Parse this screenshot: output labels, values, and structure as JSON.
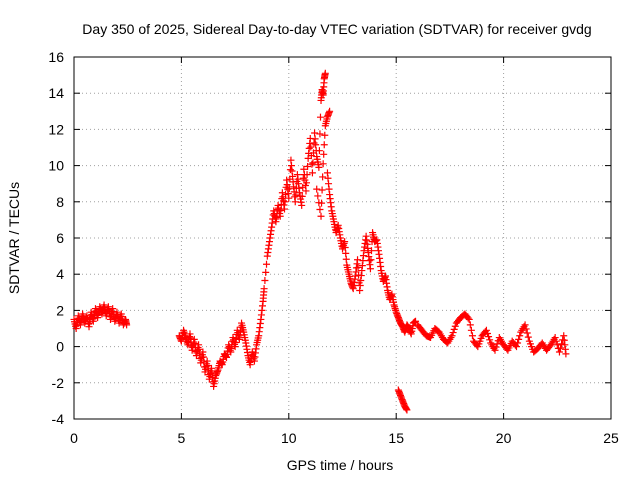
{
  "chart_data": {
    "type": "scatter",
    "title": "Day 350 of 2025, Sidereal Day-to-day VTEC variation (SDTVAR) for receiver gvdg",
    "xlabel": "GPS time / hours",
    "ylabel": "SDTVAR / TECUs",
    "xlim": [
      0,
      25
    ],
    "ylim": [
      -4,
      16
    ],
    "xticks": [
      "0",
      "5",
      "10",
      "15",
      "20",
      "25"
    ],
    "yticks": [
      "-4",
      "-2",
      "0",
      "2",
      "4",
      "6",
      "8",
      "10",
      "12",
      "14",
      "16"
    ],
    "grid": true,
    "marker": "+",
    "color": "#ff0000",
    "series": [
      {
        "name": "SDTVAR",
        "points": [
          [
            0.0,
            1.5
          ],
          [
            0.1,
            1.0
          ],
          [
            0.2,
            1.7
          ],
          [
            0.3,
            1.2
          ],
          [
            0.4,
            1.8
          ],
          [
            0.5,
            1.3
          ],
          [
            0.6,
            1.7
          ],
          [
            0.7,
            1.1
          ],
          [
            0.8,
            1.9
          ],
          [
            0.9,
            1.4
          ],
          [
            1.0,
            2.1
          ],
          [
            1.1,
            1.6
          ],
          [
            1.2,
            2.2
          ],
          [
            1.3,
            1.8
          ],
          [
            1.4,
            2.3
          ],
          [
            1.5,
            1.7
          ],
          [
            1.6,
            2.2
          ],
          [
            1.7,
            1.5
          ],
          [
            1.8,
            2.1
          ],
          [
            1.9,
            1.4
          ],
          [
            2.0,
            1.9
          ],
          [
            2.1,
            1.3
          ],
          [
            2.2,
            1.8
          ],
          [
            2.3,
            1.2
          ],
          [
            2.4,
            1.5
          ],
          [
            2.45,
            1.2
          ],
          [
            4.9,
            0.6
          ],
          [
            5.0,
            0.3
          ],
          [
            5.1,
            0.9
          ],
          [
            5.2,
            0.5
          ],
          [
            5.3,
            0.1
          ],
          [
            5.4,
            0.7
          ],
          [
            5.5,
            -0.2
          ],
          [
            5.6,
            0.4
          ],
          [
            5.7,
            -0.5
          ],
          [
            5.8,
            0.1
          ],
          [
            5.9,
            -0.9
          ],
          [
            6.0,
            -0.3
          ],
          [
            6.1,
            -1.4
          ],
          [
            6.2,
            -0.8
          ],
          [
            6.3,
            -1.8
          ],
          [
            6.4,
            -1.2
          ],
          [
            6.5,
            -2.2
          ],
          [
            6.6,
            -1.6
          ],
          [
            6.7,
            -1.3
          ],
          [
            6.8,
            -0.8
          ],
          [
            6.9,
            -1.0
          ],
          [
            7.0,
            -0.4
          ],
          [
            7.1,
            -0.6
          ],
          [
            7.2,
            0.1
          ],
          [
            7.3,
            -0.3
          ],
          [
            7.4,
            0.5
          ],
          [
            7.5,
            0.0
          ],
          [
            7.6,
            0.9
          ],
          [
            7.7,
            0.4
          ],
          [
            7.8,
            1.3
          ],
          [
            7.9,
            0.8
          ],
          [
            8.0,
            0.2
          ],
          [
            8.1,
            -0.5
          ],
          [
            8.2,
            -1.0
          ],
          [
            8.3,
            -0.3
          ],
          [
            8.4,
            -0.8
          ],
          [
            8.5,
            0.1
          ],
          [
            8.6,
            0.6
          ],
          [
            8.7,
            1.5
          ],
          [
            8.8,
            2.5
          ],
          [
            8.85,
            3.2
          ],
          [
            9.0,
            5.0
          ],
          [
            9.1,
            5.8
          ],
          [
            9.2,
            6.6
          ],
          [
            9.3,
            7.5
          ],
          [
            9.4,
            6.9
          ],
          [
            9.5,
            7.8
          ],
          [
            9.6,
            7.2
          ],
          [
            9.7,
            8.5
          ],
          [
            9.8,
            7.6
          ],
          [
            9.9,
            9.2
          ],
          [
            10.0,
            8.2
          ],
          [
            10.1,
            10.3
          ],
          [
            10.2,
            9.1
          ],
          [
            10.3,
            8.0
          ],
          [
            10.4,
            9.5
          ],
          [
            10.5,
            8.5
          ],
          [
            10.6,
            7.8
          ],
          [
            10.7,
            9.8
          ],
          [
            10.8,
            8.6
          ],
          [
            10.9,
            10.4
          ],
          [
            11.0,
            11.5
          ],
          [
            11.1,
            9.6
          ],
          [
            11.2,
            11.8
          ],
          [
            11.3,
            10.5
          ],
          [
            11.4,
            9.9
          ],
          [
            11.5,
            13.6
          ],
          [
            11.55,
            14.2
          ],
          [
            11.6,
            13.9
          ],
          [
            11.65,
            14.8
          ],
          [
            11.7,
            15.1
          ],
          [
            11.3,
            8.7
          ],
          [
            11.5,
            7.2
          ],
          [
            11.6,
            10.1
          ],
          [
            11.7,
            12.2
          ],
          [
            11.8,
            12.7
          ],
          [
            11.9,
            13.0
          ],
          [
            11.8,
            9.6
          ],
          [
            11.9,
            8.4
          ],
          [
            12.0,
            7.5
          ],
          [
            12.1,
            6.9
          ],
          [
            12.2,
            6.3
          ],
          [
            12.3,
            6.7
          ],
          [
            12.4,
            6.0
          ],
          [
            12.5,
            5.4
          ],
          [
            12.6,
            5.8
          ],
          [
            12.7,
            4.5
          ],
          [
            12.8,
            4.0
          ],
          [
            12.9,
            3.5
          ],
          [
            13.0,
            3.2
          ],
          [
            13.1,
            3.9
          ],
          [
            13.2,
            4.8
          ],
          [
            13.3,
            3.1
          ],
          [
            13.4,
            4.2
          ],
          [
            13.5,
            5.3
          ],
          [
            13.6,
            6.1
          ],
          [
            13.7,
            5.2
          ],
          [
            13.8,
            4.3
          ],
          [
            13.9,
            6.3
          ],
          [
            14.0,
            5.8
          ],
          [
            14.1,
            5.9
          ],
          [
            14.2,
            5.1
          ],
          [
            14.3,
            4.2
          ],
          [
            14.4,
            3.6
          ],
          [
            14.5,
            3.9
          ],
          [
            14.6,
            3.1
          ],
          [
            14.7,
            2.6
          ],
          [
            14.8,
            2.9
          ],
          [
            14.9,
            2.3
          ],
          [
            15.0,
            1.9
          ],
          [
            15.1,
            1.6
          ],
          [
            15.2,
            1.3
          ],
          [
            15.3,
            1.1
          ],
          [
            15.4,
            0.8
          ],
          [
            15.5,
            1.2
          ],
          [
            15.6,
            1.0
          ],
          [
            15.7,
            0.7
          ],
          [
            15.8,
            1.3
          ],
          [
            15.9,
            1.4
          ],
          [
            15.1,
            -2.4
          ],
          [
            15.2,
            -2.7
          ],
          [
            15.3,
            -3.0
          ],
          [
            15.4,
            -3.3
          ],
          [
            15.5,
            -3.5
          ],
          [
            16.0,
            1.2
          ],
          [
            16.2,
            0.9
          ],
          [
            16.4,
            0.6
          ],
          [
            16.6,
            0.5
          ],
          [
            16.8,
            1.0
          ],
          [
            17.0,
            0.8
          ],
          [
            17.2,
            0.4
          ],
          [
            17.4,
            0.2
          ],
          [
            17.6,
            0.6
          ],
          [
            17.8,
            1.3
          ],
          [
            18.0,
            1.6
          ],
          [
            18.2,
            1.8
          ],
          [
            18.4,
            1.5
          ],
          [
            18.6,
            0.3
          ],
          [
            18.8,
            0.0
          ],
          [
            19.0,
            0.6
          ],
          [
            19.2,
            0.9
          ],
          [
            19.4,
            0.2
          ],
          [
            19.6,
            -0.2
          ],
          [
            19.8,
            0.5
          ],
          [
            20.0,
            0.1
          ],
          [
            20.2,
            -0.2
          ],
          [
            20.4,
            0.3
          ],
          [
            20.6,
            0.0
          ],
          [
            20.8,
            0.8
          ],
          [
            21.0,
            1.2
          ],
          [
            21.2,
            0.3
          ],
          [
            21.4,
            -0.3
          ],
          [
            21.6,
            -0.1
          ],
          [
            21.8,
            0.2
          ],
          [
            22.0,
            -0.2
          ],
          [
            22.2,
            0.1
          ],
          [
            22.4,
            0.5
          ],
          [
            22.6,
            -0.3
          ],
          [
            22.8,
            0.6
          ],
          [
            22.9,
            -0.4
          ]
        ]
      }
    ]
  }
}
